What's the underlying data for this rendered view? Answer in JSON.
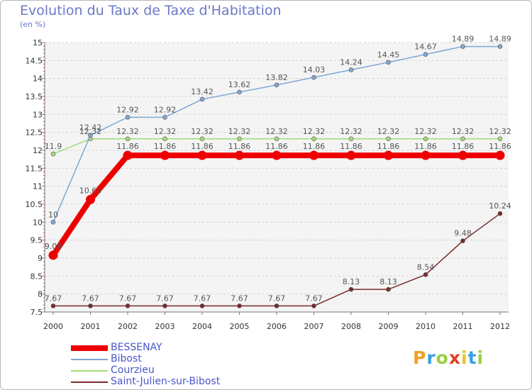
{
  "header": {
    "title": "Evolution du Taux de Taxe d'Habitation",
    "unit": "(en %)"
  },
  "chart_data": {
    "type": "line",
    "title": "Evolution du Taux de Taxe d'Habitation",
    "ylabel": "(en %)",
    "xlabel": "",
    "x": [
      "2000",
      "2001",
      "2002",
      "2003",
      "2004",
      "2005",
      "2006",
      "2007",
      "2008",
      "2009",
      "2010",
      "2011",
      "2012"
    ],
    "ylim": [
      7.5,
      15
    ],
    "yticks": [
      "7.5",
      "8",
      "8.5",
      "9",
      "9.5",
      "10",
      "10.5",
      "11",
      "11.5",
      "12",
      "12.5",
      "13",
      "13.5",
      "14",
      "14.5",
      "15"
    ],
    "grid": "horizontal dashed",
    "legend_position": "bottom-left",
    "series": [
      {
        "name": "BESSENAY",
        "color": "#ee0000",
        "values": [
          9.08,
          10.63,
          11.86,
          11.86,
          11.86,
          11.86,
          11.86,
          11.86,
          11.86,
          11.86,
          11.86,
          11.86,
          11.86
        ],
        "labels": [
          "9.08",
          "10.63",
          "11.86",
          "11.86",
          "11.86",
          "11.86",
          "11.86",
          "11.86",
          "11.86",
          "11.86",
          "11.86",
          "11.86",
          "11.86"
        ]
      },
      {
        "name": "Bibost",
        "color": "#7fa7d4",
        "values": [
          10,
          12.42,
          12.92,
          12.92,
          13.42,
          13.62,
          13.82,
          14.03,
          14.24,
          14.45,
          14.67,
          14.89,
          14.89
        ],
        "labels": [
          "10",
          "12.42",
          "12.92",
          "12.92",
          "13.42",
          "13.62",
          "13.82",
          "14.03",
          "14.24",
          "14.45",
          "14.67",
          "14.89",
          "14.89"
        ]
      },
      {
        "name": "Courzieu",
        "color": "#a3da78",
        "values": [
          11.9,
          12.32,
          12.32,
          12.32,
          12.32,
          12.32,
          12.32,
          12.32,
          12.32,
          12.32,
          12.32,
          12.32,
          12.32
        ],
        "labels": [
          "11.9",
          "12.32",
          "12.32",
          "12.32",
          "12.32",
          "12.32",
          "12.32",
          "12.32",
          "12.32",
          "12.32",
          "12.32",
          "12.32",
          "12.32"
        ]
      },
      {
        "name": "Saint-Julien-sur-Bibost",
        "color": "#7a2a2a",
        "values": [
          7.67,
          7.67,
          7.67,
          7.67,
          7.67,
          7.67,
          7.67,
          7.67,
          8.13,
          8.13,
          8.54,
          9.48,
          10.24
        ],
        "labels": [
          "7.67",
          "7.67",
          "7.67",
          "7.67",
          "7.67",
          "7.67",
          "7.67",
          "7.67",
          "8.13",
          "8.13",
          "8.54",
          "9.48",
          "10.24"
        ]
      }
    ]
  },
  "logo": {
    "letters": [
      "P",
      "r",
      "o",
      "x",
      "i",
      "t",
      "i"
    ],
    "colors": [
      "#f0a020",
      "#3aa0e0",
      "#9ad040",
      "#e04020",
      "#f0c020",
      "#3aa0e0",
      "#9ad040"
    ]
  }
}
